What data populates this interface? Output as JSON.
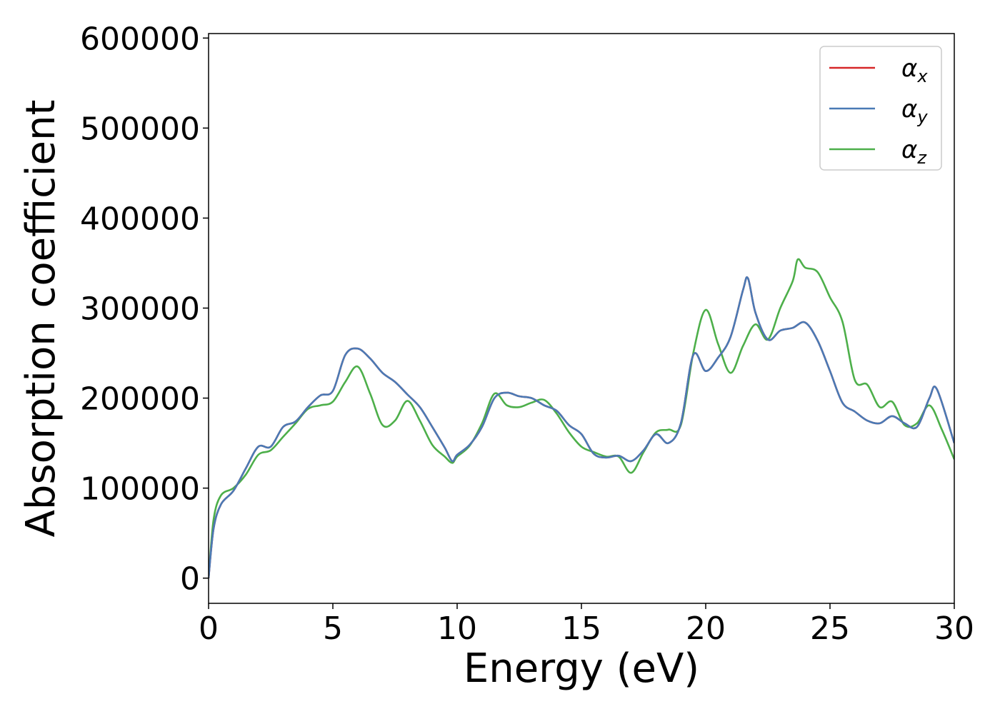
{
  "chart_data": {
    "type": "line",
    "title": "",
    "xlabel": "Energy (eV)",
    "ylabel": "Absorption coefficient",
    "xlim": [
      0,
      30
    ],
    "ylim": [
      -28000,
      605000
    ],
    "xticks": [
      0,
      5,
      10,
      15,
      20,
      25,
      30
    ],
    "xtick_labels": [
      "0",
      "5",
      "10",
      "15",
      "20",
      "25",
      "30"
    ],
    "yticks": [
      0,
      100000,
      200000,
      300000,
      400000,
      500000,
      600000
    ],
    "ytick_labels": [
      "0",
      "100000",
      "200000",
      "300000",
      "400000",
      "500000",
      "600000"
    ],
    "grid": false,
    "legend_position": "top-right",
    "series": [
      {
        "name": "α",
        "subscript": "x",
        "color": "#d62728",
        "x": [
          0,
          0.2,
          0.5,
          1,
          1.5,
          2,
          2.5,
          3,
          3.5,
          4,
          4.5,
          5,
          5.5,
          6,
          6.5,
          7,
          7.5,
          8,
          8.5,
          9,
          9.5,
          9.8,
          10,
          10.5,
          11,
          11.5,
          12,
          12.5,
          13,
          13.5,
          14,
          14.5,
          15,
          15.5,
          16,
          16.5,
          17,
          17.5,
          18,
          18.5,
          19,
          19.5,
          20,
          20.5,
          21,
          21.5,
          21.7,
          22,
          22.5,
          23,
          23.5,
          24,
          24.5,
          25,
          25.5,
          26,
          26.5,
          27,
          27.5,
          28,
          28.5,
          29,
          29.3,
          30
        ],
        "values": [
          0,
          55000,
          82000,
          97000,
          122000,
          146000,
          146000,
          168000,
          174000,
          190000,
          203000,
          208000,
          248000,
          255000,
          244000,
          228000,
          218000,
          204000,
          190000,
          168000,
          145000,
          130000,
          137000,
          148000,
          168000,
          200000,
          206000,
          202000,
          200000,
          192000,
          186000,
          170000,
          160000,
          138000,
          134000,
          136000,
          130000,
          142000,
          160000,
          150000,
          172000,
          248000,
          230000,
          245000,
          268000,
          320000,
          333000,
          295000,
          265000,
          275000,
          278000,
          284000,
          264000,
          230000,
          195000,
          185000,
          175000,
          172000,
          180000,
          172000,
          168000,
          200000,
          210000,
          150000
        ]
      },
      {
        "name": "α",
        "subscript": "y",
        "color": "#4a7ab5",
        "x": [
          0,
          0.2,
          0.5,
          1,
          1.5,
          2,
          2.5,
          3,
          3.5,
          4,
          4.5,
          5,
          5.5,
          6,
          6.5,
          7,
          7.5,
          8,
          8.5,
          9,
          9.5,
          9.8,
          10,
          10.5,
          11,
          11.5,
          12,
          12.5,
          13,
          13.5,
          14,
          14.5,
          15,
          15.5,
          16,
          16.5,
          17,
          17.5,
          18,
          18.5,
          19,
          19.5,
          20,
          20.5,
          21,
          21.5,
          21.7,
          22,
          22.5,
          23,
          23.5,
          24,
          24.5,
          25,
          25.5,
          26,
          26.5,
          27,
          27.5,
          28,
          28.5,
          29,
          29.3,
          30
        ],
        "values": [
          0,
          55000,
          82000,
          97000,
          122000,
          146000,
          146000,
          168000,
          174000,
          190000,
          203000,
          208000,
          248000,
          255000,
          244000,
          228000,
          218000,
          204000,
          190000,
          168000,
          145000,
          130000,
          137000,
          148000,
          168000,
          200000,
          206000,
          202000,
          200000,
          192000,
          186000,
          170000,
          160000,
          138000,
          134000,
          136000,
          130000,
          142000,
          160000,
          150000,
          172000,
          248000,
          230000,
          245000,
          268000,
          320000,
          333000,
          295000,
          265000,
          275000,
          278000,
          284000,
          264000,
          230000,
          195000,
          185000,
          175000,
          172000,
          180000,
          172000,
          168000,
          200000,
          210000,
          150000
        ]
      },
      {
        "name": "α",
        "subscript": "z",
        "color": "#4daf4a",
        "x": [
          0,
          0.2,
          0.5,
          1,
          1.5,
          2,
          2.5,
          3,
          3.5,
          4,
          4.5,
          5,
          5.5,
          6,
          6.5,
          7,
          7.5,
          8,
          8.5,
          9,
          9.5,
          9.8,
          10,
          10.5,
          11,
          11.5,
          12,
          12.5,
          13,
          13.5,
          14,
          14.5,
          15,
          15.5,
          16,
          16.5,
          17,
          17.5,
          18,
          18.5,
          19,
          19.5,
          20,
          20.5,
          21,
          21.5,
          22,
          22.5,
          23,
          23.5,
          23.7,
          24,
          24.5,
          25,
          25.5,
          26,
          26.5,
          27,
          27.5,
          28,
          28.5,
          29,
          29.5,
          30
        ],
        "values": [
          0,
          65000,
          92000,
          100000,
          115000,
          137000,
          142000,
          157000,
          172000,
          188000,
          192000,
          196000,
          218000,
          235000,
          205000,
          170000,
          175000,
          197000,
          175000,
          148000,
          135000,
          128000,
          135000,
          147000,
          172000,
          205000,
          192000,
          190000,
          195000,
          198000,
          183000,
          162000,
          146000,
          140000,
          135000,
          135000,
          117000,
          140000,
          162000,
          165000,
          170000,
          250000,
          298000,
          260000,
          228000,
          258000,
          282000,
          265000,
          300000,
          330000,
          354000,
          345000,
          340000,
          312000,
          285000,
          220000,
          215000,
          190000,
          196000,
          170000,
          172000,
          192000,
          165000,
          132000
        ]
      }
    ]
  }
}
